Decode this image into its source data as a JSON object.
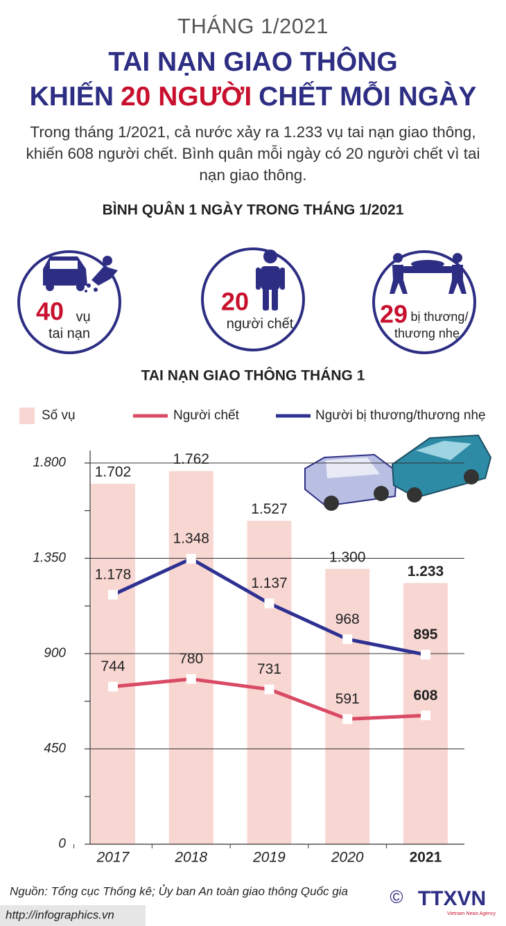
{
  "header": {
    "kicker": "THÁNG 1/2021",
    "title_line1": "TAI NẠN GIAO THÔNG",
    "title_line2": [
      "KHIẾN",
      "20 NGƯỜI",
      "CHẾT MỖI NGÀY"
    ],
    "intro": "Trong tháng 1/2021, cả nước xảy ra 1.233 vụ tai nạn giao thông, khiến 608 người chết. Bình quân mỗi ngày có 20 người chết vì tai nạn giao thông."
  },
  "stats_title": "BÌNH QUÂN 1 NGÀY TRONG THÁNG 1/2021",
  "stats": [
    {
      "value": 40,
      "label": [
        "vụ",
        "tai nạn"
      ]
    },
    {
      "value": 20,
      "label": [
        "người chết"
      ]
    },
    {
      "value": 29,
      "label": [
        "bị thương/",
        "thương nhẹ"
      ]
    }
  ],
  "chart_data": {
    "type": "combo",
    "title": "TAI NẠN GIAO THÔNG THÁNG 1",
    "categories": [
      "2017",
      "2018",
      "2019",
      "2020",
      "2021"
    ],
    "series": [
      {
        "name": "Số vụ",
        "type": "bar",
        "color": "#f8d6d2",
        "values": [
          1702,
          1762,
          1527,
          1300,
          1233
        ],
        "value_labels": [
          "1.702",
          "1.762",
          "1.527",
          "1.300",
          "1.233"
        ]
      },
      {
        "name": "Người chết",
        "type": "line",
        "color": "#d94a64",
        "values": [
          744,
          780,
          731,
          591,
          608
        ]
      },
      {
        "name": "Người bị thương/thương nhẹ",
        "type": "line",
        "color": "#2e3192",
        "values": [
          1178,
          1348,
          1137,
          968,
          895
        ],
        "value_labels": [
          "1.178",
          "1.348",
          "1.137",
          "968",
          "895"
        ]
      }
    ],
    "ylim": [
      0,
      1800
    ],
    "yticks": [
      0,
      450,
      900,
      {
        "value": 1350,
        "label": "1.350"
      },
      {
        "value": 1800,
        "label": "1.800"
      }
    ],
    "yminor_ticks": [
      225,
      675,
      1125,
      1575
    ],
    "grid": true,
    "bold_last": true,
    "legend": "top"
  },
  "footer": {
    "source": "Nguồn: Tổng cục Thống kê; Ủy ban An toàn giao thông Quốc gia",
    "url": "http://infographics.vn",
    "copyright": "©",
    "logo": "TTXVN",
    "logo_sub": "Vietnam News Agency"
  }
}
